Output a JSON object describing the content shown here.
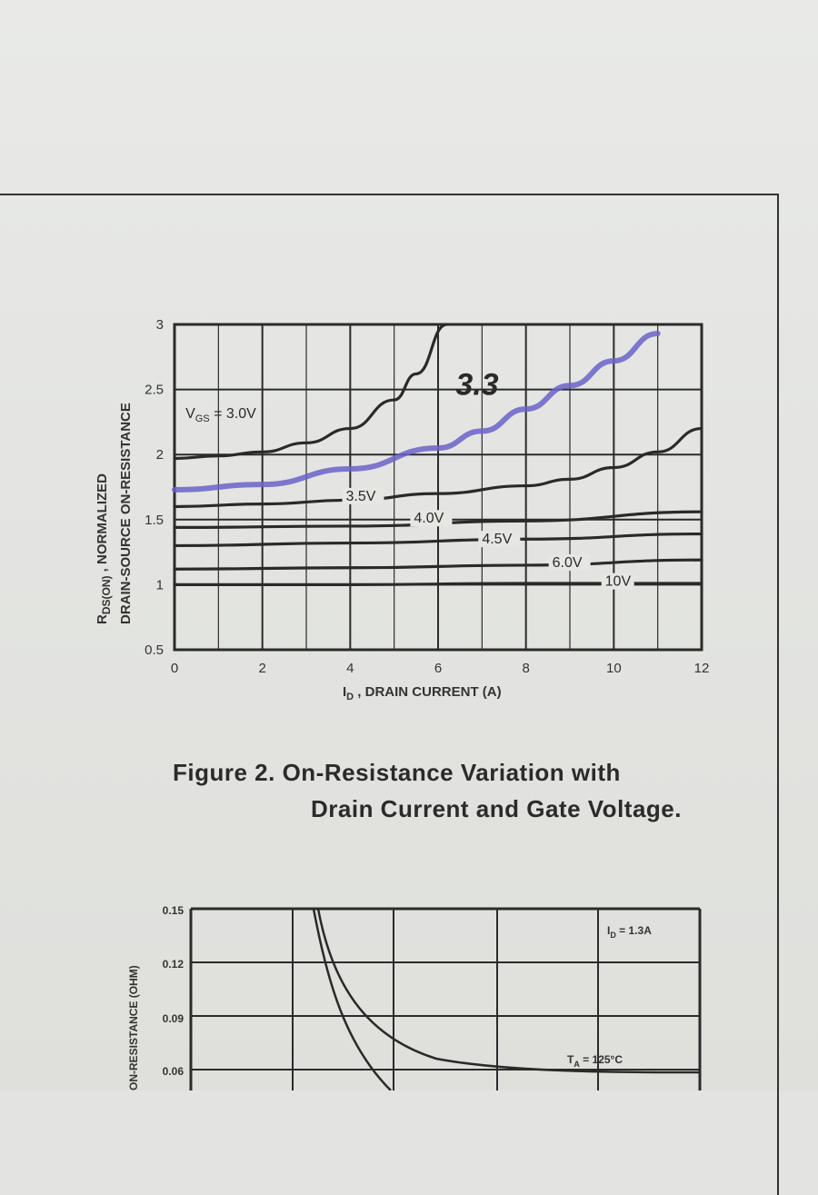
{
  "chart_data": [
    {
      "type": "line",
      "xlabel": "I<sub>D</sub>, DRAIN CURRENT (A)",
      "xlabel_text": "I",
      "xlabel_sub": "D",
      "xlabel_rest": " , DRAIN CURRENT (A)",
      "ylabel_line1_prefix": "R",
      "ylabel_line1_sub": "DS(ON)",
      "ylabel_line1_rest": " , NORMALIZED",
      "ylabel_line2": "DRAIN-SOURCE ON-RESISTANCE",
      "xlim": [
        0,
        12
      ],
      "ylim": [
        0.5,
        3
      ],
      "x_ticks": [
        "0",
        "2",
        "4",
        "6",
        "8",
        "10",
        "12"
      ],
      "y_ticks": [
        "0.5",
        "1",
        "1.5",
        "2",
        "2.5",
        "3"
      ],
      "grid": true,
      "series": [
        {
          "name": "V_GS = 3.0V",
          "label_prefix": "V",
          "label_sub": "GS",
          "label_rest": " = 3.0V",
          "x": [
            0,
            1,
            2,
            3,
            4,
            5,
            5.5,
            6.2
          ],
          "y": [
            1.97,
            1.99,
            2.02,
            2.09,
            2.2,
            2.42,
            2.62,
            3.0
          ]
        },
        {
          "name": "3.5V",
          "x": [
            0,
            2,
            4,
            6,
            8,
            9,
            10,
            11,
            12
          ],
          "y": [
            1.6,
            1.62,
            1.65,
            1.7,
            1.76,
            1.81,
            1.9,
            2.02,
            2.2
          ]
        },
        {
          "name": "4.0V",
          "x": [
            0,
            4,
            8,
            12
          ],
          "y": [
            1.44,
            1.45,
            1.49,
            1.56
          ]
        },
        {
          "name": "4.5V",
          "x": [
            0,
            4,
            8,
            12
          ],
          "y": [
            1.3,
            1.32,
            1.35,
            1.39
          ]
        },
        {
          "name": "6.0V",
          "x": [
            0,
            4,
            8,
            12
          ],
          "y": [
            1.12,
            1.13,
            1.15,
            1.19
          ]
        },
        {
          "name": "10V",
          "x": [
            0,
            4,
            8,
            12
          ],
          "y": [
            1.0,
            1.0,
            1.01,
            1.01
          ]
        },
        {
          "name": "3.3",
          "handwritten": true,
          "color": "#6b63c9",
          "x": [
            0,
            2,
            4,
            6,
            7,
            8,
            9,
            10,
            11
          ],
          "y": [
            1.73,
            1.77,
            1.89,
            2.05,
            2.18,
            2.35,
            2.53,
            2.72,
            2.93
          ]
        }
      ]
    },
    {
      "type": "line",
      "partial": true,
      "ylabel": "ON-RESISTANCE (OHM)",
      "y_ticks": [
        "0.15",
        "0.12",
        "0.09",
        "0.06"
      ],
      "annotations": [
        {
          "prefix": "I",
          "sub": "D",
          "rest": " = 1.3A"
        },
        {
          "prefix": "T",
          "sub": "A",
          "rest": " = 125°C"
        }
      ]
    }
  ],
  "caption": {
    "line1": "Figure 2. On-Resistance Variation with",
    "line2": "Drain Current and Gate Voltage."
  }
}
